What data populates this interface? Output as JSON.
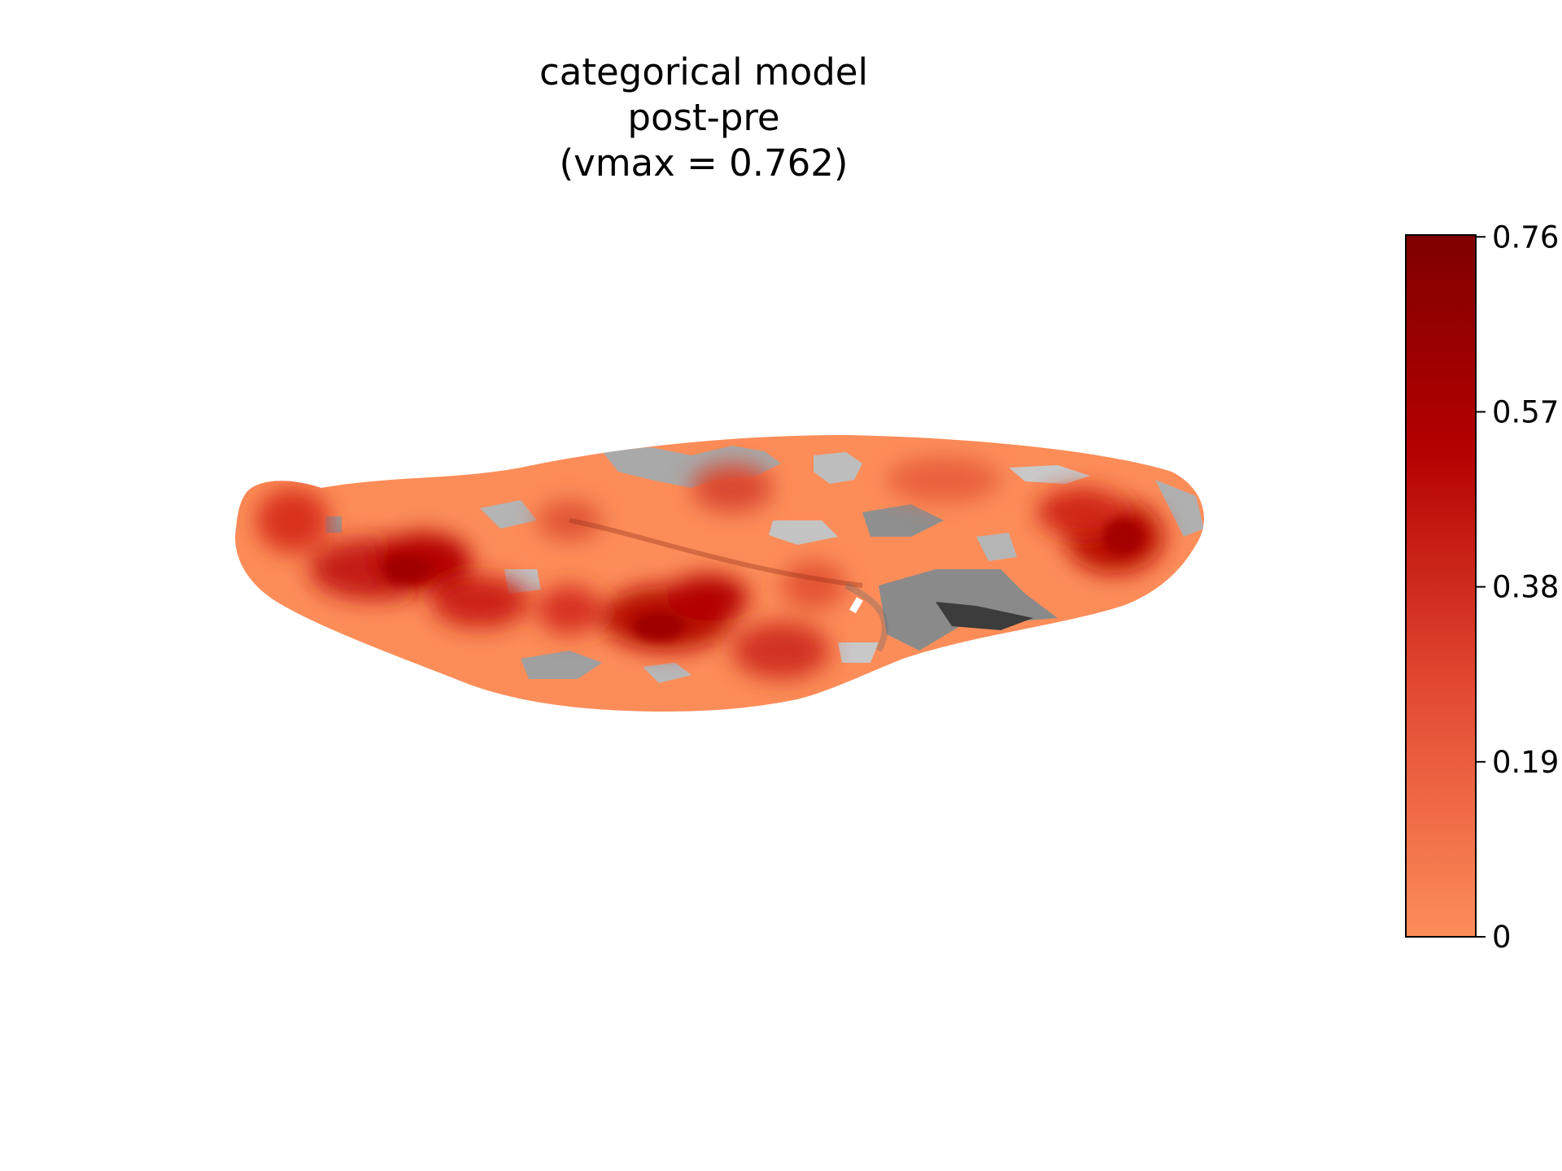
{
  "chart_data": {
    "type": "heatmap",
    "title": [
      "categorical model",
      "post-pre",
      "(vmax = 0.762)"
    ],
    "surface": "inflated cortical surface (lateral view) with grey sulcal/gyral background",
    "colormap": {
      "name": "Reds (truncated)",
      "stops": [
        "#fc8d59",
        "#e34a33",
        "#b30000",
        "#7f0000"
      ],
      "vmin": 0,
      "vmax": 0.762
    },
    "colorbar": {
      "ticks": [
        0,
        0.19,
        0.38,
        0.57,
        0.76
      ],
      "tick_labels": [
        "0",
        "0.19",
        "0.38",
        "0.57",
        "0.76"
      ],
      "placement": "right"
    },
    "background_colors": [
      "#6b6b6b",
      "#9a9a9a",
      "#c8c8c8",
      "#3a3a3a"
    ]
  }
}
